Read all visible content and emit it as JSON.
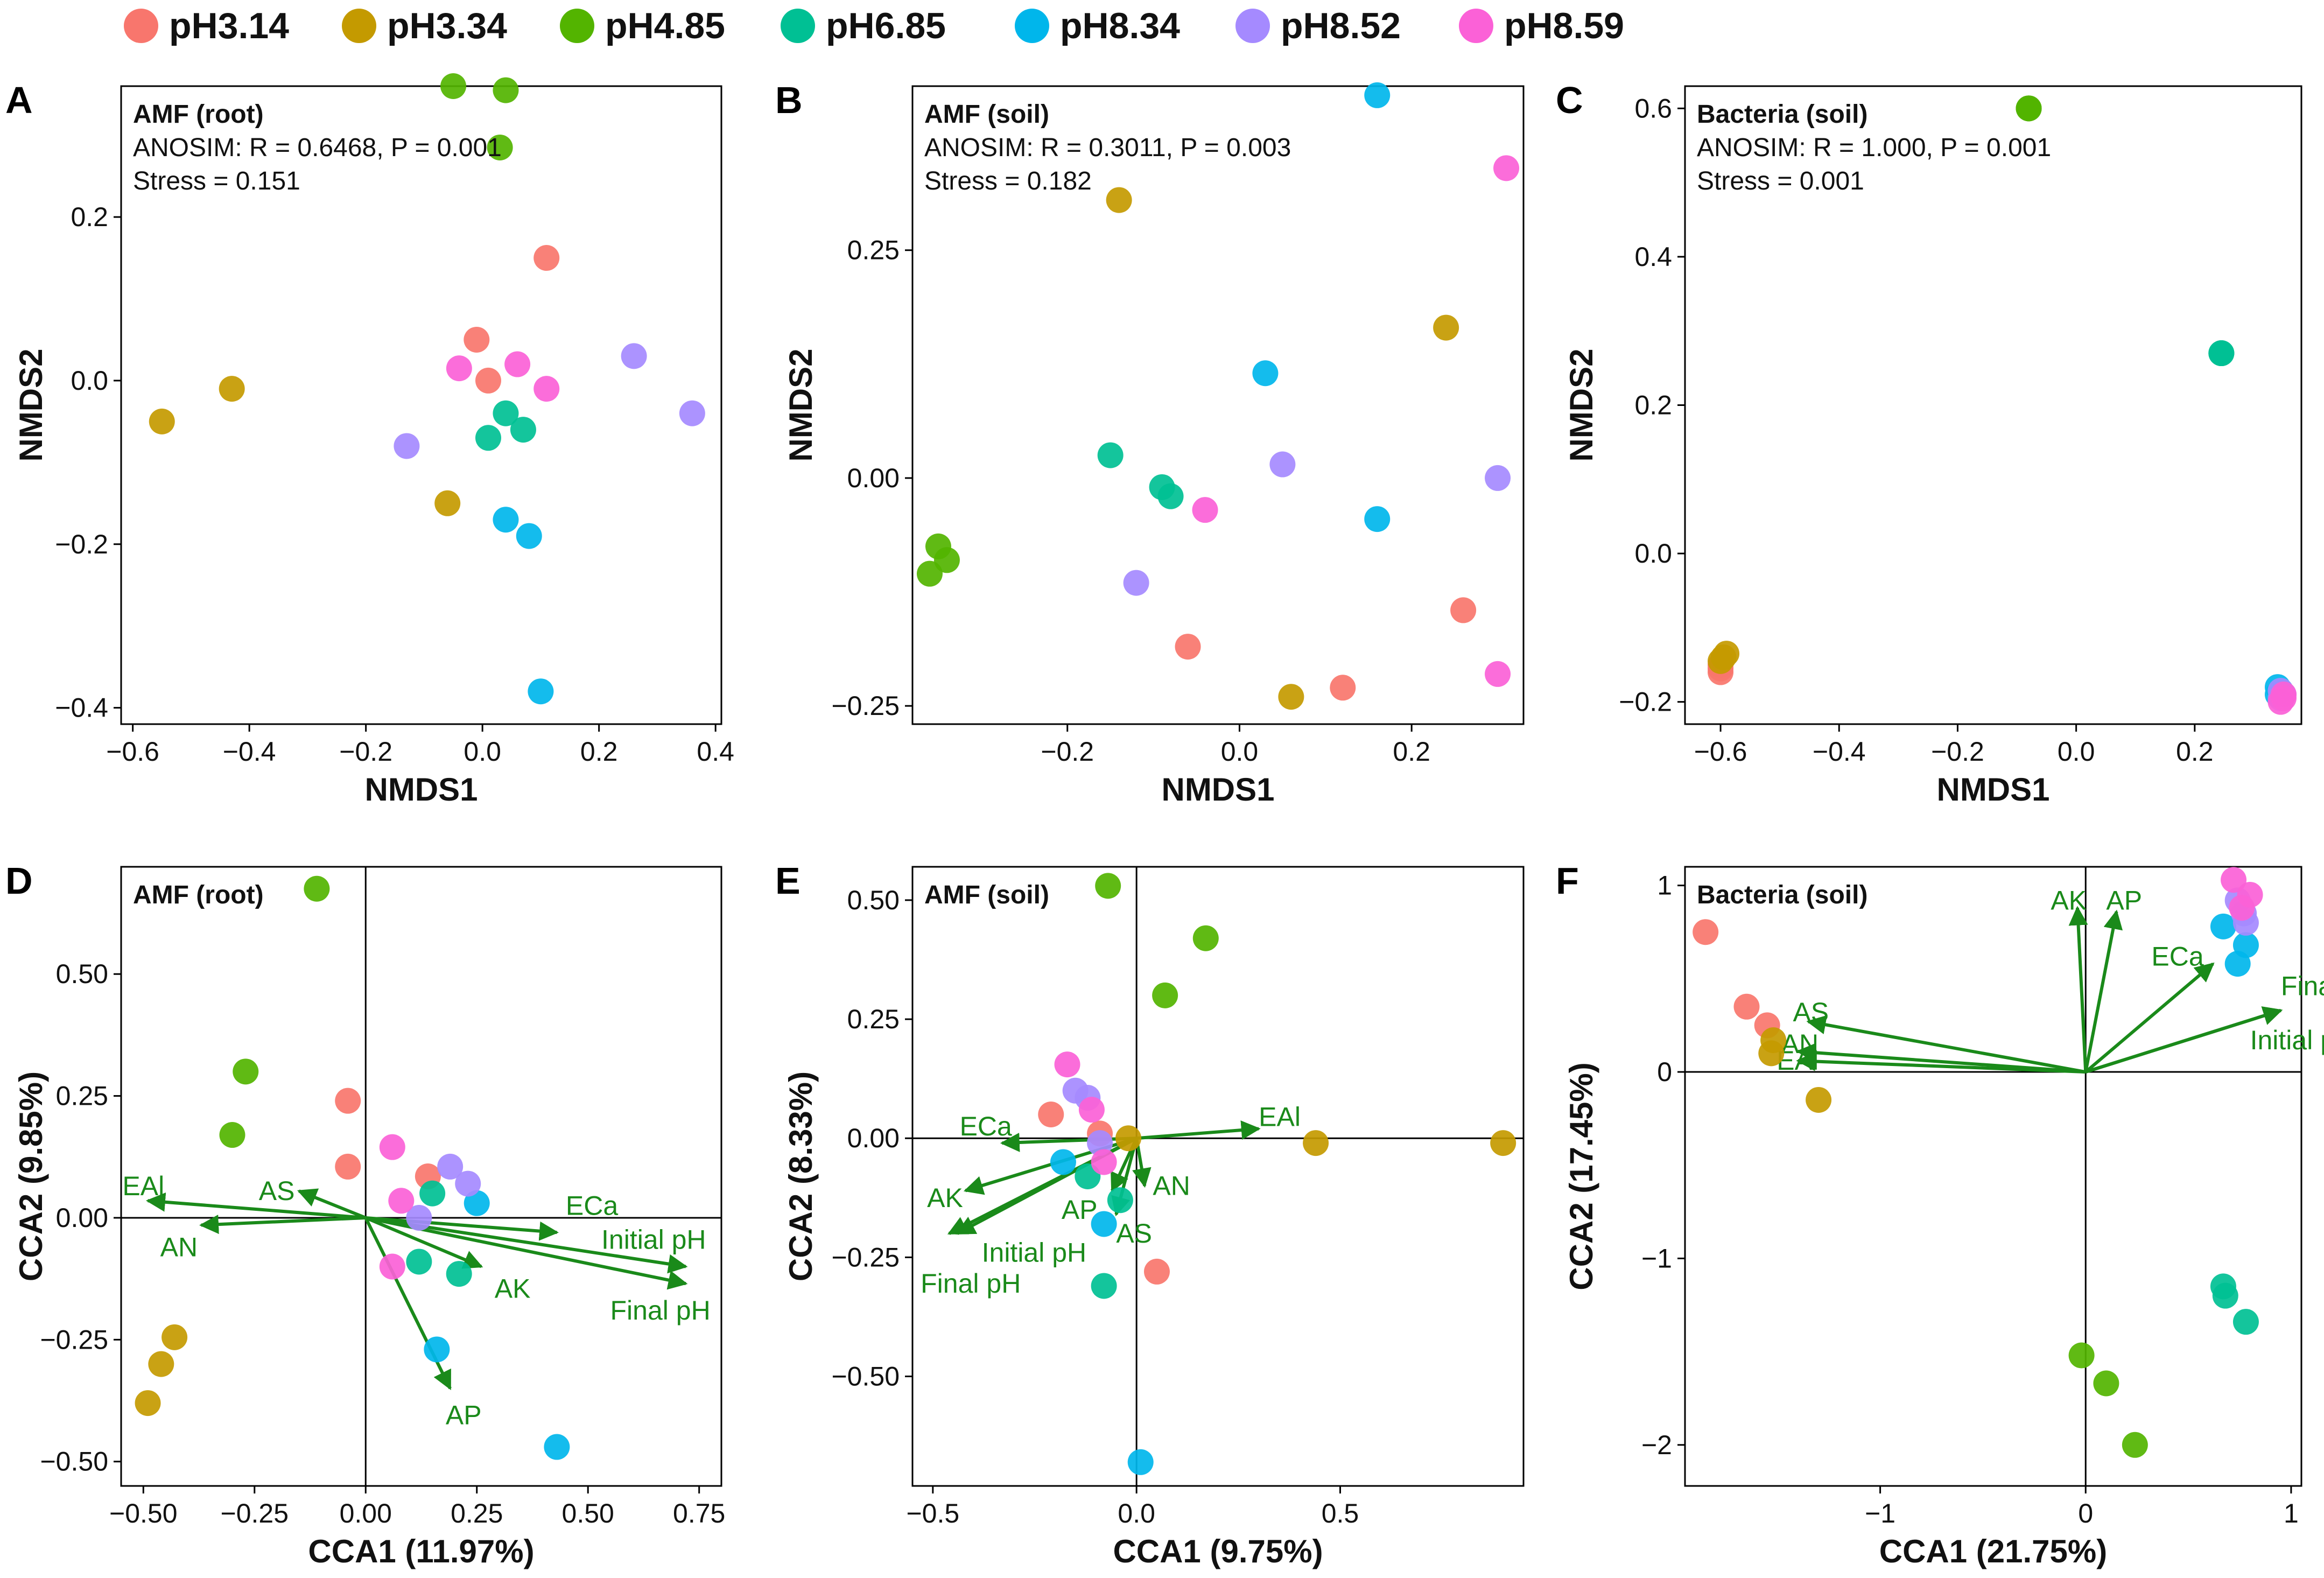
{
  "colors": {
    "pH3.14": "#F8766D",
    "pH3.34": "#C49A00",
    "pH4.85": "#53B400",
    "pH6.85": "#00C094",
    "pH8.34": "#00B6EB",
    "pH8.52": "#A58AFF",
    "pH8.59": "#FB61D7",
    "arrow": "#1a8a1a",
    "axis": "#000000"
  },
  "legend": {
    "items": [
      "pH3.14",
      "pH3.34",
      "pH4.85",
      "pH6.85",
      "pH8.34",
      "pH8.52",
      "pH8.59"
    ]
  },
  "chart_data": [
    {
      "panel": "A",
      "type": "scatter",
      "title": "AMF (root)",
      "annotations": [
        "ANOSIM: R = 0.6468, P = 0.001",
        "Stress = 0.151"
      ],
      "xlabel": "NMDS1",
      "ylabel": "NMDS2",
      "xlim": [
        -0.62,
        0.41
      ],
      "ylim": [
        -0.42,
        0.36
      ],
      "xticks": [
        -0.6,
        -0.4,
        -0.2,
        0.0,
        0.2,
        0.4
      ],
      "xtick_labels": [
        "−0.6",
        "−0.4",
        "−0.2",
        "0.0",
        "0.2",
        "0.4"
      ],
      "yticks": [
        0.2,
        0.0,
        -0.2,
        -0.4
      ],
      "ytick_labels": [
        "0.2",
        "0.0",
        "−0.2",
        "−0.4"
      ],
      "zero_lines": false,
      "series": [
        {
          "name": "pH3.14",
          "x": [
            0.11,
            -0.01,
            0.01
          ],
          "y": [
            0.15,
            0.05,
            0.0
          ]
        },
        {
          "name": "pH3.34",
          "x": [
            -0.55,
            -0.43,
            -0.06
          ],
          "y": [
            -0.05,
            -0.01,
            -0.15
          ]
        },
        {
          "name": "pH4.85",
          "x": [
            -0.05,
            0.04,
            0.03
          ],
          "y": [
            0.36,
            0.355,
            0.285
          ]
        },
        {
          "name": "pH6.85",
          "x": [
            0.04,
            0.07,
            0.01
          ],
          "y": [
            -0.04,
            -0.06,
            -0.07
          ]
        },
        {
          "name": "pH8.34",
          "x": [
            0.04,
            0.08,
            0.1
          ],
          "y": [
            -0.17,
            -0.19,
            -0.38
          ]
        },
        {
          "name": "pH8.52",
          "x": [
            0.26,
            0.36,
            -0.13
          ],
          "y": [
            0.03,
            -0.04,
            -0.08
          ]
        },
        {
          "name": "pH8.59",
          "x": [
            -0.04,
            0.06,
            0.11
          ],
          "y": [
            0.015,
            0.02,
            -0.01
          ]
        }
      ]
    },
    {
      "panel": "B",
      "type": "scatter",
      "title": "AMF (soil)",
      "annotations": [
        "ANOSIM: R = 0.3011, P = 0.003",
        "Stress = 0.182"
      ],
      "xlabel": "NMDS1",
      "ylabel": "NMDS2",
      "xlim": [
        -0.38,
        0.33
      ],
      "ylim": [
        -0.27,
        0.43
      ],
      "xticks": [
        -0.2,
        0.0,
        0.2
      ],
      "xtick_labels": [
        "−0.2",
        "0.0",
        "0.2"
      ],
      "yticks": [
        0.25,
        0.0,
        -0.25
      ],
      "ytick_labels": [
        "0.25",
        "0.00",
        "−0.25"
      ],
      "zero_lines": false,
      "series": [
        {
          "name": "pH3.14",
          "x": [
            -0.06,
            0.26,
            0.12
          ],
          "y": [
            -0.185,
            -0.145,
            -0.23
          ]
        },
        {
          "name": "pH3.34",
          "x": [
            -0.14,
            0.24,
            0.06
          ],
          "y": [
            0.305,
            0.165,
            -0.24
          ]
        },
        {
          "name": "pH4.85",
          "x": [
            -0.35,
            -0.34,
            -0.36
          ],
          "y": [
            -0.075,
            -0.09,
            -0.105
          ]
        },
        {
          "name": "pH6.85",
          "x": [
            -0.15,
            -0.09,
            -0.08
          ],
          "y": [
            0.025,
            -0.01,
            -0.02
          ]
        },
        {
          "name": "pH8.34",
          "x": [
            0.16,
            0.03,
            0.16
          ],
          "y": [
            0.42,
            0.115,
            -0.045
          ]
        },
        {
          "name": "pH8.52",
          "x": [
            0.05,
            0.3,
            -0.12
          ],
          "y": [
            0.015,
            0.0,
            -0.115
          ]
        },
        {
          "name": "pH8.59",
          "x": [
            0.31,
            -0.04,
            0.3
          ],
          "y": [
            0.34,
            -0.035,
            -0.215
          ]
        }
      ]
    },
    {
      "panel": "C",
      "type": "scatter",
      "title": "Bacteria (soil)",
      "annotations": [
        "ANOSIM: R = 1.000, P = 0.001",
        "Stress = 0.001"
      ],
      "xlabel": "NMDS1",
      "ylabel": "NMDS2",
      "xlim": [
        -0.66,
        0.38
      ],
      "ylim": [
        -0.23,
        0.63
      ],
      "xticks": [
        -0.6,
        -0.4,
        -0.2,
        0.0,
        0.2
      ],
      "xtick_labels": [
        "−0.6",
        "−0.4",
        "−0.2",
        "0.0",
        "0.2"
      ],
      "yticks": [
        0.6,
        0.4,
        0.2,
        0.0,
        -0.2
      ],
      "ytick_labels": [
        "0.6",
        "0.4",
        "0.2",
        "0.0",
        "−0.2"
      ],
      "zero_lines": false,
      "series": [
        {
          "name": "pH3.14",
          "x": [
            -0.6,
            -0.6,
            -0.6
          ],
          "y": [
            -0.155,
            -0.16,
            -0.15
          ]
        },
        {
          "name": "pH3.34",
          "x": [
            -0.59,
            -0.595,
            -0.6
          ],
          "y": [
            -0.135,
            -0.14,
            -0.145
          ]
        },
        {
          "name": "pH4.85",
          "x": [
            -0.08,
            -0.08,
            -0.08
          ],
          "y": [
            0.6,
            0.6,
            0.6
          ]
        },
        {
          "name": "pH6.85",
          "x": [
            0.245,
            0.245,
            0.245
          ],
          "y": [
            0.27,
            0.27,
            0.27
          ]
        },
        {
          "name": "pH8.34",
          "x": [
            0.34,
            0.345,
            0.34
          ],
          "y": [
            -0.18,
            -0.185,
            -0.19
          ]
        },
        {
          "name": "pH8.52",
          "x": [
            0.345,
            0.35,
            0.345
          ],
          "y": [
            -0.185,
            -0.19,
            -0.195
          ]
        },
        {
          "name": "pH8.59",
          "x": [
            0.35,
            0.35,
            0.345
          ],
          "y": [
            -0.19,
            -0.195,
            -0.2
          ]
        }
      ]
    },
    {
      "panel": "D",
      "type": "scatter",
      "title": "AMF (root)",
      "annotations": [],
      "xlabel": "CCA1 (11.97%)",
      "ylabel": "CCA2 (9.85%)",
      "xlim": [
        -0.55,
        0.8
      ],
      "ylim": [
        -0.55,
        0.72
      ],
      "xticks": [
        -0.5,
        -0.25,
        0.0,
        0.25,
        0.5,
        0.75
      ],
      "xtick_labels": [
        "−0.50",
        "−0.25",
        "0.00",
        "0.25",
        "0.50",
        "0.75"
      ],
      "yticks": [
        0.5,
        0.25,
        0.0,
        -0.25,
        -0.5
      ],
      "ytick_labels": [
        "0.50",
        "0.25",
        "0.00",
        "−0.25",
        "−0.50"
      ],
      "zero_lines": true,
      "series": [
        {
          "name": "pH3.14",
          "x": [
            -0.04,
            -0.04,
            0.14
          ],
          "y": [
            0.24,
            0.105,
            0.085
          ]
        },
        {
          "name": "pH3.34",
          "x": [
            -0.43,
            -0.46,
            -0.49
          ],
          "y": [
            -0.245,
            -0.3,
            -0.38
          ]
        },
        {
          "name": "pH4.85",
          "x": [
            -0.11,
            -0.27,
            -0.3
          ],
          "y": [
            0.675,
            0.3,
            0.17
          ]
        },
        {
          "name": "pH6.85",
          "x": [
            0.15,
            0.12,
            0.21
          ],
          "y": [
            0.05,
            -0.09,
            -0.115
          ]
        },
        {
          "name": "pH8.34",
          "x": [
            0.25,
            0.16,
            0.43
          ],
          "y": [
            0.03,
            -0.27,
            -0.47
          ]
        },
        {
          "name": "pH8.52",
          "x": [
            0.19,
            0.23,
            0.12
          ],
          "y": [
            0.105,
            0.07,
            0.0
          ]
        },
        {
          "name": "pH8.59",
          "x": [
            0.06,
            0.08,
            0.06
          ],
          "y": [
            0.145,
            0.035,
            -0.1
          ]
        }
      ],
      "arrows": [
        {
          "label": "EAl",
          "x": -0.49,
          "y": 0.035,
          "lx": -0.5,
          "ly": 0.065
        },
        {
          "label": "AN",
          "x": -0.37,
          "y": -0.015,
          "lx": -0.42,
          "ly": -0.06
        },
        {
          "label": "AS",
          "x": -0.15,
          "y": 0.055,
          "lx": -0.2,
          "ly": 0.055
        },
        {
          "label": "ECa",
          "x": 0.43,
          "y": -0.03,
          "lx": 0.45,
          "ly": 0.025,
          "anchor": "start"
        },
        {
          "label": "Initial pH",
          "x": 0.72,
          "y": -0.1,
          "lx": 0.53,
          "ly": -0.045,
          "anchor": "start"
        },
        {
          "label": "Final pH",
          "x": 0.72,
          "y": -0.135,
          "lx": 0.55,
          "ly": -0.19,
          "anchor": "start"
        },
        {
          "label": "AK",
          "x": 0.26,
          "y": -0.1,
          "lx": 0.29,
          "ly": -0.145,
          "anchor": "start"
        },
        {
          "label": "AP",
          "x": 0.19,
          "y": -0.35,
          "lx": 0.18,
          "ly": -0.405,
          "anchor": "start"
        }
      ]
    },
    {
      "panel": "E",
      "type": "scatter",
      "title": "AMF (soil)",
      "annotations": [],
      "xlabel": "CCA1 (9.75%)",
      "ylabel": "CCA2 (8.33%)",
      "xlim": [
        -0.55,
        0.95
      ],
      "ylim": [
        -0.73,
        0.57
      ],
      "xticks": [
        -0.5,
        0.0,
        0.5
      ],
      "xtick_labels": [
        "−0.5",
        "0.0",
        "0.5"
      ],
      "yticks": [
        0.5,
        0.25,
        0.0,
        -0.25,
        -0.5
      ],
      "ytick_labels": [
        "0.50",
        "0.25",
        "0.00",
        "−0.25",
        "−0.50"
      ],
      "zero_lines": true,
      "series": [
        {
          "name": "pH3.14",
          "x": [
            -0.21,
            -0.09,
            0.05
          ],
          "y": [
            0.05,
            0.01,
            -0.28
          ]
        },
        {
          "name": "pH3.34",
          "x": [
            0.44,
            0.9,
            -0.02
          ],
          "y": [
            -0.01,
            -0.01,
            0.0
          ]
        },
        {
          "name": "pH4.85",
          "x": [
            -0.07,
            0.17,
            0.07
          ],
          "y": [
            0.53,
            0.42,
            0.3
          ]
        },
        {
          "name": "pH6.85",
          "x": [
            -0.12,
            -0.04,
            -0.08
          ],
          "y": [
            -0.08,
            -0.13,
            -0.31
          ]
        },
        {
          "name": "pH8.34",
          "x": [
            -0.18,
            -0.08,
            0.01
          ],
          "y": [
            -0.05,
            -0.18,
            -0.68
          ]
        },
        {
          "name": "pH8.52",
          "x": [
            -0.15,
            -0.12,
            -0.09
          ],
          "y": [
            0.1,
            0.085,
            -0.01
          ]
        },
        {
          "name": "pH8.59",
          "x": [
            -0.17,
            -0.11,
            -0.08
          ],
          "y": [
            0.155,
            0.06,
            -0.05
          ]
        }
      ],
      "arrows": [
        {
          "label": "ECa",
          "x": -0.33,
          "y": -0.01,
          "lx": -0.37,
          "ly": 0.025,
          "anchor": "middle"
        },
        {
          "label": "EAl",
          "x": 0.3,
          "y": 0.02,
          "lx": 0.3,
          "ly": 0.045,
          "anchor": "start"
        },
        {
          "label": "AK",
          "x": -0.42,
          "y": -0.11,
          "lx": -0.47,
          "ly": -0.125,
          "anchor": "middle"
        },
        {
          "label": "Initial pH",
          "x": -0.44,
          "y": -0.2,
          "lx": -0.38,
          "ly": -0.24,
          "anchor": "start"
        },
        {
          "label": "Final pH",
          "x": -0.46,
          "y": -0.2,
          "lx": -0.53,
          "ly": -0.305,
          "anchor": "start"
        },
        {
          "label": "AP",
          "x": -0.06,
          "y": -0.11,
          "lx": -0.14,
          "ly": -0.15,
          "anchor": "middle"
        },
        {
          "label": "AN",
          "x": 0.02,
          "y": -0.1,
          "lx": 0.04,
          "ly": -0.1,
          "anchor": "start"
        },
        {
          "label": "AS",
          "x": -0.05,
          "y": -0.16,
          "lx": -0.05,
          "ly": -0.2,
          "anchor": "start"
        }
      ]
    },
    {
      "panel": "F",
      "type": "scatter",
      "title": "Bacteria (soil)",
      "annotations": [],
      "xlabel": "CCA1 (21.75%)",
      "ylabel": "CCA2 (17.45%)",
      "xlim": [
        -1.95,
        1.05
      ],
      "ylim": [
        -2.22,
        1.1
      ],
      "xticks": [
        -1,
        0,
        1
      ],
      "xtick_labels": [
        "−1",
        "0",
        "1"
      ],
      "yticks": [
        1,
        0,
        -1,
        -2
      ],
      "ytick_labels": [
        "1",
        "0",
        "−1",
        "−2"
      ],
      "zero_lines": true,
      "series": [
        {
          "name": "pH3.14",
          "x": [
            -1.85,
            -1.65,
            -1.55
          ],
          "y": [
            0.75,
            0.35,
            0.25
          ]
        },
        {
          "name": "pH3.34",
          "x": [
            -1.52,
            -1.53,
            -1.3
          ],
          "y": [
            0.17,
            0.1,
            -0.15
          ]
        },
        {
          "name": "pH4.85",
          "x": [
            -0.02,
            0.1,
            0.24
          ],
          "y": [
            -1.52,
            -1.67,
            -2.0
          ]
        },
        {
          "name": "pH6.85",
          "x": [
            0.67,
            0.68,
            0.78
          ],
          "y": [
            -1.15,
            -1.2,
            -1.34
          ]
        },
        {
          "name": "pH8.34",
          "x": [
            0.67,
            0.78,
            0.74
          ],
          "y": [
            0.78,
            0.68,
            0.58
          ]
        },
        {
          "name": "pH8.52",
          "x": [
            0.74,
            0.78,
            0.77
          ],
          "y": [
            0.92,
            0.8,
            0.85
          ]
        },
        {
          "name": "pH8.59",
          "x": [
            0.72,
            0.8,
            0.76
          ],
          "y": [
            1.03,
            0.95,
            0.88
          ]
        }
      ],
      "arrows": [
        {
          "label": "AK",
          "x": -0.04,
          "y": 0.88,
          "lx": -0.17,
          "ly": 0.92,
          "anchor": "start"
        },
        {
          "label": "AP",
          "x": 0.15,
          "y": 0.86,
          "lx": 0.1,
          "ly": 0.92,
          "anchor": "start"
        },
        {
          "label": "ECa",
          "x": 0.62,
          "y": 0.58,
          "lx": 0.32,
          "ly": 0.62,
          "anchor": "start"
        },
        {
          "label": "Final pH",
          "x": 0.95,
          "y": 0.33,
          "lx": 0.95,
          "ly": 0.46,
          "anchor": "start"
        },
        {
          "label": "Initial pH",
          "x": 0.95,
          "y": 0.33,
          "lx": 0.8,
          "ly": 0.17,
          "anchor": "start"
        },
        {
          "label": "AS",
          "x": -1.35,
          "y": 0.27,
          "lx": -1.25,
          "ly": 0.32,
          "anchor": "end"
        },
        {
          "label": "AN",
          "x": -1.4,
          "y": 0.11,
          "lx": -1.3,
          "ly": 0.15,
          "anchor": "end"
        },
        {
          "label": "EAl",
          "x": -1.4,
          "y": 0.06,
          "lx": -1.3,
          "ly": 0.06,
          "anchor": "end"
        }
      ]
    }
  ]
}
